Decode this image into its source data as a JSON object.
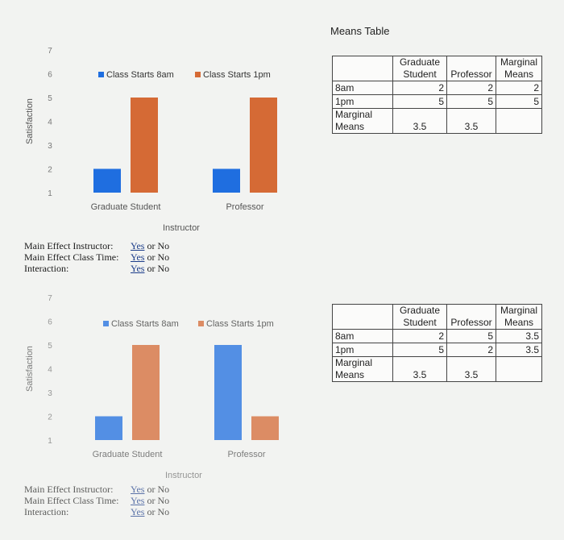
{
  "chart_data": [
    {
      "type": "bar",
      "categories": [
        "Graduate Student",
        "Professor"
      ],
      "series": [
        {
          "name": "Class Starts 8am",
          "values": [
            2,
            2
          ],
          "color": "#1f6ee0"
        },
        {
          "name": "Class Starts 1pm",
          "values": [
            5,
            5
          ],
          "color": "#d56a35"
        }
      ],
      "xlabel": "Instructor",
      "ylabel": "Satisfaction",
      "yticks": [
        1,
        2,
        3,
        4,
        5,
        6,
        7
      ],
      "ylim": [
        1,
        7
      ],
      "legend": "top"
    },
    {
      "type": "bar",
      "categories": [
        "Graduate Student",
        "Professor"
      ],
      "series": [
        {
          "name": "Class Starts 8am",
          "values": [
            2,
            5
          ],
          "color": "#1f6ee0"
        },
        {
          "name": "Class Starts 1pm",
          "values": [
            5,
            2
          ],
          "color": "#d56a35"
        }
      ],
      "xlabel": "Instructor",
      "ylabel": "Satisfaction",
      "yticks": [
        1,
        2,
        3,
        4,
        5,
        6,
        7
      ],
      "ylim": [
        1,
        7
      ],
      "legend": "top"
    }
  ],
  "means_title": "Means Table",
  "tables": [
    {
      "headers": [
        "",
        "Graduate Student",
        "Professor",
        "Marginal Means"
      ],
      "rows": [
        [
          "8am",
          "2",
          "2",
          "2"
        ],
        [
          "1pm",
          "5",
          "5",
          "5"
        ],
        [
          "Marginal Means",
          "3.5",
          "3.5",
          ""
        ]
      ]
    },
    {
      "headers": [
        "",
        "Graduate Student",
        "Professor",
        "Marginal Means"
      ],
      "rows": [
        [
          "8am",
          "2",
          "5",
          "3.5"
        ],
        [
          "1pm",
          "5",
          "2",
          "3.5"
        ],
        [
          "Marginal Means",
          "3.5",
          "3.5",
          ""
        ]
      ]
    }
  ],
  "effects": {
    "main_instructor": "Main Effect Instructor:",
    "main_class_time": "Main Effect Class Time:",
    "interaction": "Interaction:",
    "yes": "Yes",
    "or": "or",
    "no": "No"
  }
}
